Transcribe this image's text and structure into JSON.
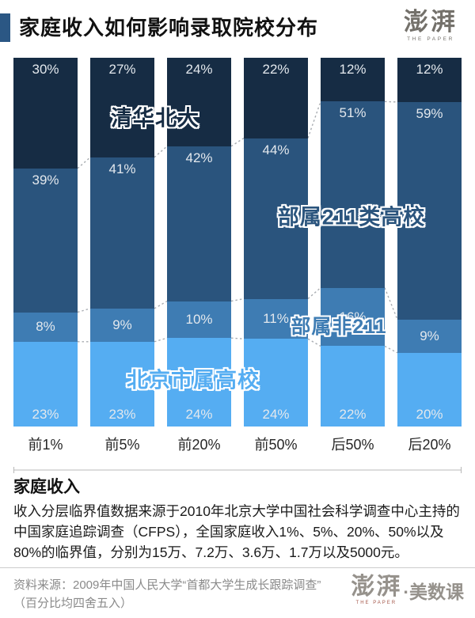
{
  "theme": {
    "accent": "#2B5784",
    "value_label_color": "#E3E8ED",
    "category_label_color": "#262626",
    "note_divider_color": "#B8B8B8",
    "footer_divider_color": "#CCCCCC",
    "footer_text_color": "#8A8A8A",
    "top_logo_color": "#74716B",
    "footer_logo_color": "#96928C",
    "footer_logo_sub_color": "#A4574A",
    "connector_color": "#A9ADB2"
  },
  "header": {
    "title": "家庭收入如何影响录取院校分布",
    "logo_text": "澎湃",
    "logo_subtext": "THE PAPER"
  },
  "chart_data": {
    "type": "bar",
    "stacked": true,
    "unit": "%",
    "categories": [
      "前1%",
      "前5%",
      "前20%",
      "前50%",
      "后50%",
      "后20%"
    ],
    "series": [
      {
        "name": "清华北大",
        "color": "#162C44",
        "values": [
          30,
          27,
          24,
          22,
          12,
          12
        ]
      },
      {
        "name": "部属211类高校",
        "color": "#2A547D",
        "values": [
          39,
          41,
          42,
          44,
          51,
          59
        ]
      },
      {
        "name": "部属非211",
        "color": "#3E7CB3",
        "values": [
          8,
          9,
          10,
          11,
          16,
          9
        ]
      },
      {
        "name": "北京市属高校",
        "color": "#55ADF2",
        "values": [
          23,
          23,
          24,
          24,
          22,
          20
        ]
      }
    ],
    "ylim": [
      0,
      100
    ],
    "grid": false,
    "legend_position": "overlay-on-bars",
    "connector_lines": "dashed lines join segment boundaries of adjacent bars"
  },
  "note": {
    "heading": "家庭收入",
    "body": "收入分层临界值数据来源于2010年北京大学中国社会科学调查中心主持的中国家庭追踪调查（CFPS），全国家庭收入1%、5%、20%、50%以及80%的临界值，分别为15万、7.2万、3.6万、1.7万以及5000元。"
  },
  "footer": {
    "source_line1": "资料来源：2009年中国人民大学“首都大学生成长跟踪调查”",
    "source_line2": "（百分比均四舍五入）",
    "logo_text": "澎湃",
    "logo_subtext": "THE PAPER",
    "brand": "·美数课"
  }
}
